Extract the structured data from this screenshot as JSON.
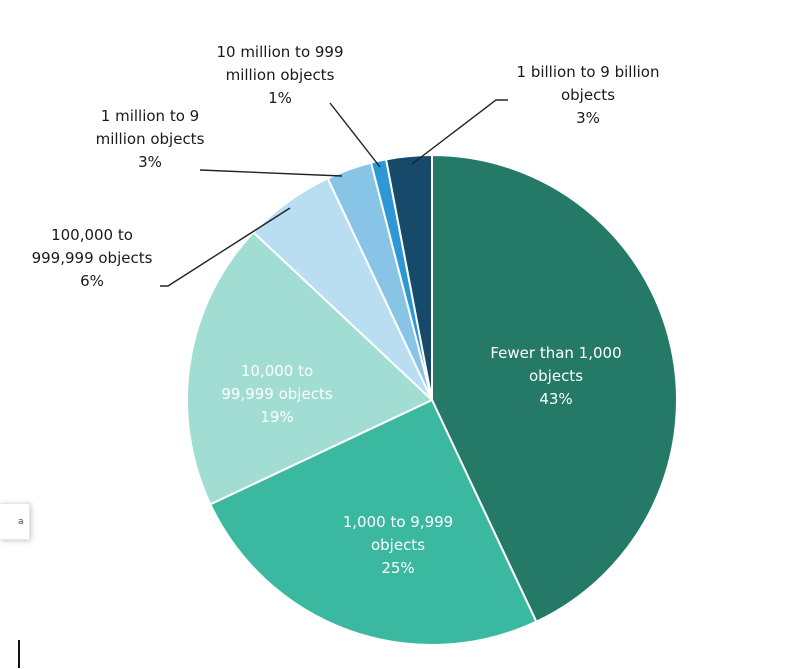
{
  "chart_data": {
    "type": "pie",
    "slices": [
      {
        "label": "Fewer than 1,000 objects",
        "lines": [
          "Fewer than 1,000",
          "objects"
        ],
        "pct_label": "43%",
        "value": 43,
        "color": "#247A67"
      },
      {
        "label": "1,000 to 9,999 objects",
        "lines": [
          "1,000 to 9,999",
          "objects"
        ],
        "pct_label": "25%",
        "value": 25,
        "color": "#3BB8A0"
      },
      {
        "label": "10,000 to 99,999 objects",
        "lines": [
          "10,000 to",
          "99,999 objects"
        ],
        "pct_label": "19%",
        "value": 19,
        "color": "#A1DDD2"
      },
      {
        "label": "100,000 to 999,999 objects",
        "lines": [
          "100,000 to",
          "999,999 objects"
        ],
        "pct_label": "6%",
        "value": 6,
        "color": "#B9DDF1"
      },
      {
        "label": "1 million to 9 million objects",
        "lines": [
          "1 million to 9",
          "million objects"
        ],
        "pct_label": "3%",
        "value": 3,
        "color": "#88C4E6"
      },
      {
        "label": "10 million to 999 million objects",
        "lines": [
          "10 million to 999",
          "million objects"
        ],
        "pct_label": "1%",
        "value": 1,
        "color": "#2E97D6"
      },
      {
        "label": "1 billion to 9 billion objects",
        "lines": [
          "1 billion to 9 billion",
          "objects"
        ],
        "pct_label": "3%",
        "value": 3,
        "color": "#17496A"
      }
    ]
  },
  "edge_widget": {
    "glyph": "a"
  }
}
